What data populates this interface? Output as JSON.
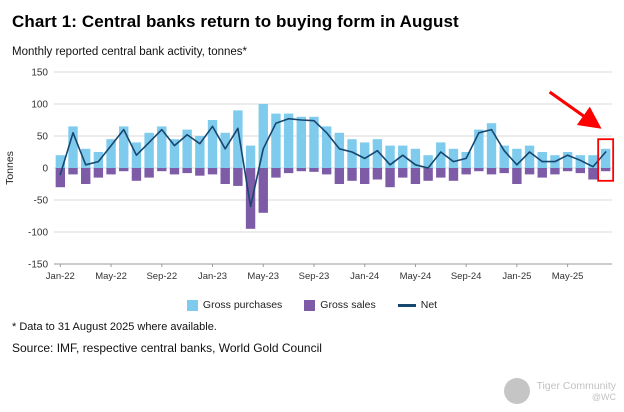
{
  "header": {
    "title": "Chart 1: Central banks return to buying form in August"
  },
  "subtitle": "Monthly reported central bank activity, tonnes*",
  "chart_data": {
    "type": "bar",
    "subtype": "stacked-pos-neg-bars-with-line",
    "title": "Chart 1: Central banks return to buying form in August",
    "xlabel": "",
    "ylabel": "Tonnes",
    "ylim": [
      -150,
      150
    ],
    "yticks": [
      150,
      100,
      50,
      0,
      -50,
      -100,
      -150
    ],
    "grid": true,
    "legend_position": "bottom",
    "xtick_labels": [
      "Jan-22",
      "May-22",
      "Sep-22",
      "Jan-23",
      "May-23",
      "Sep-23",
      "Jan-24",
      "May-24",
      "Sep-24",
      "Jan-25",
      "May-25"
    ],
    "xtick_every": 4,
    "months": [
      "Jan-22",
      "Feb-22",
      "Mar-22",
      "Apr-22",
      "May-22",
      "Jun-22",
      "Jul-22",
      "Aug-22",
      "Sep-22",
      "Oct-22",
      "Nov-22",
      "Dec-22",
      "Jan-23",
      "Feb-23",
      "Mar-23",
      "Apr-23",
      "May-23",
      "Jun-23",
      "Jul-23",
      "Aug-23",
      "Sep-23",
      "Oct-23",
      "Nov-23",
      "Dec-23",
      "Jan-24",
      "Feb-24",
      "Mar-24",
      "Apr-24",
      "May-24",
      "Jun-24",
      "Jul-24",
      "Aug-24",
      "Sep-24",
      "Oct-24",
      "Nov-24",
      "Dec-24",
      "Jan-25",
      "Feb-25",
      "Mar-25",
      "Apr-25",
      "May-25",
      "Jun-25",
      "Jul-25",
      "Aug-25"
    ],
    "series": [
      {
        "name": "Gross purchases",
        "type": "bar",
        "color": "#7ECBED",
        "values": [
          20,
          65,
          30,
          25,
          45,
          65,
          40,
          55,
          65,
          45,
          60,
          50,
          75,
          55,
          90,
          35,
          100,
          85,
          85,
          80,
          80,
          65,
          55,
          45,
          40,
          45,
          35,
          35,
          30,
          20,
          40,
          30,
          25,
          60,
          70,
          35,
          30,
          35,
          25,
          20,
          25,
          20,
          20,
          30
        ]
      },
      {
        "name": "Gross sales",
        "type": "bar",
        "color": "#7E5BA6",
        "values": [
          -30,
          -10,
          -25,
          -15,
          -10,
          -5,
          -20,
          -15,
          -5,
          -10,
          -8,
          -12,
          -10,
          -25,
          -28,
          -95,
          -70,
          -15,
          -8,
          -5,
          -6,
          -10,
          -25,
          -20,
          -25,
          -18,
          -30,
          -15,
          -25,
          -20,
          -15,
          -20,
          -10,
          -5,
          -10,
          -8,
          -25,
          -10,
          -15,
          -10,
          -5,
          -8,
          -18,
          -5
        ]
      },
      {
        "name": "Net",
        "type": "line",
        "color": "#17466E",
        "values": [
          -10,
          55,
          5,
          10,
          35,
          60,
          20,
          40,
          60,
          35,
          52,
          38,
          65,
          30,
          62,
          -60,
          30,
          70,
          77,
          75,
          74,
          55,
          30,
          25,
          15,
          27,
          5,
          20,
          5,
          0,
          25,
          10,
          15,
          55,
          60,
          27,
          5,
          25,
          10,
          10,
          20,
          12,
          2,
          25
        ]
      }
    ],
    "annotations": {
      "arrow_color": "#FE0000",
      "highlight_box_color": "#FE0000",
      "highlight_month": "Aug-25"
    }
  },
  "footnotes": {
    "note": "* Data to 31 August 2025 where available.",
    "source": "Source: IMF, respective central banks, World Gold Council"
  },
  "watermark": {
    "line1": "Tiger Community",
    "line2": "@WC"
  }
}
